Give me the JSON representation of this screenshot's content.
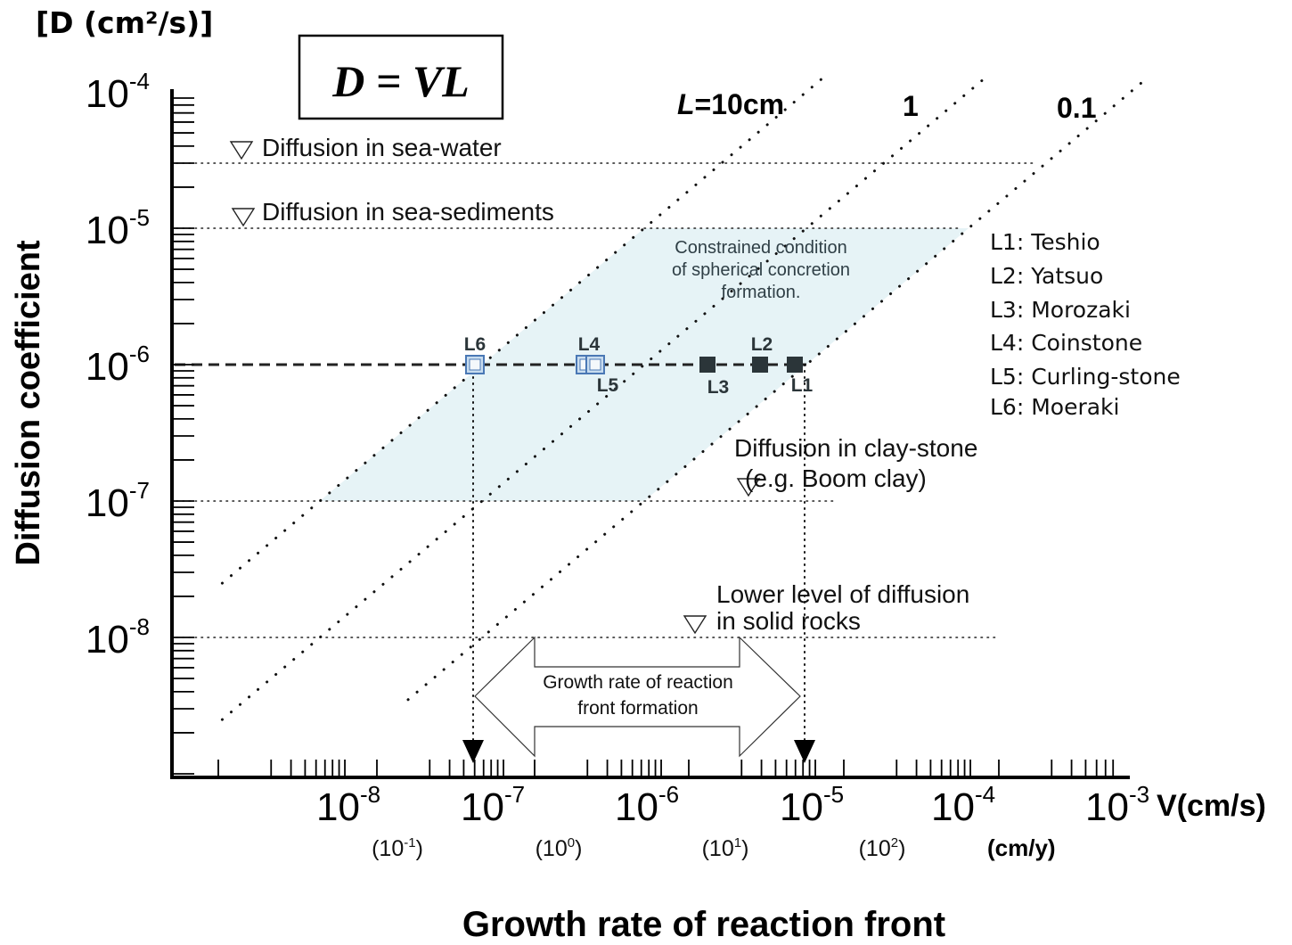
{
  "chart_data": {
    "type": "scatter",
    "title": "",
    "equation_box": "D = VL",
    "xlabel": "Growth rate of reaction front",
    "ylabel": "Diffusion coefficient",
    "y_unit_label": "[D (cm²/s)]",
    "x_unit_label": "V(cm/s)",
    "x_secondary_unit_label": "(cm/y)",
    "x_scale": "log",
    "y_scale": "log",
    "xlim": [
      1e-09,
      0.002
    ],
    "ylim": [
      3e-09,
      0.0001
    ],
    "x_ticks": [
      {
        "base": "10",
        "exp": "-8",
        "value": 1e-08
      },
      {
        "base": "10",
        "exp": "-7",
        "value": 1e-07
      },
      {
        "base": "10",
        "exp": "-6",
        "value": 1e-06
      },
      {
        "base": "10",
        "exp": "-5",
        "value": 1e-05
      },
      {
        "base": "10",
        "exp": "-4",
        "value": 0.0001
      },
      {
        "base": "10",
        "exp": "-3",
        "value": 0.001
      }
    ],
    "x_secondary_ticks": [
      {
        "base": "10",
        "exp": "-1",
        "text_open": "(",
        "text_close": ")"
      },
      {
        "base": "10",
        "exp": "0",
        "text_open": "(",
        "text_close": ")"
      },
      {
        "base": "10",
        "exp": "1",
        "text_open": "(",
        "text_close": ")"
      },
      {
        "base": "10",
        "exp": "2",
        "text_open": "(",
        "text_close": ")"
      }
    ],
    "y_ticks": [
      {
        "base": "10",
        "exp": "-4",
        "value": 0.0001
      },
      {
        "base": "10",
        "exp": "-5",
        "value": 1e-05
      },
      {
        "base": "10",
        "exp": "-6",
        "value": 1e-06
      },
      {
        "base": "10",
        "exp": "-7",
        "value": 1e-07
      },
      {
        "base": "10",
        "exp": "-8",
        "value": 1e-08
      }
    ],
    "iso_lines": [
      {
        "label": "L=10cm",
        "label_italic_part": "L",
        "label_rest": "=10cm",
        "L_cm": 10
      },
      {
        "label": "1",
        "L_cm": 1
      },
      {
        "label": "0.1",
        "L_cm": 0.1
      }
    ],
    "reference_levels": [
      {
        "name": "Diffusion in sea-water",
        "lines": [
          "Diffusion in sea-water"
        ],
        "D": 3e-05
      },
      {
        "name": "Diffusion in sea-sediments",
        "lines": [
          "Diffusion in sea-sediments"
        ],
        "D": 1e-05
      },
      {
        "name": "Diffusion in clay-stone (e.g. Boom clay)",
        "lines": [
          "Diffusion in clay-stone",
          "(e.g. Boom clay)"
        ],
        "D": 1e-07
      },
      {
        "name": "Lower level of diffusion in solid rocks",
        "lines": [
          "Lower level of diffusion",
          "in solid rocks"
        ],
        "D": 1e-08
      }
    ],
    "constrained_region": {
      "label_lines": [
        "Constrained condition",
        "of spherical concretion",
        "formation."
      ],
      "D_range": [
        1e-07,
        1e-05
      ],
      "L_range_cm": [
        0.1,
        10
      ],
      "color": "#e6f3f6"
    },
    "reference_D": 1e-06,
    "points": [
      {
        "id": "L1",
        "name": "Teshio",
        "V": 1e-05,
        "D": 1e-06,
        "style": "filled"
      },
      {
        "id": "L2",
        "name": "Yatsuo",
        "V": 6e-06,
        "D": 1e-06,
        "style": "filled"
      },
      {
        "id": "L3",
        "name": "Morozaki",
        "V": 2.8e-06,
        "D": 1e-06,
        "style": "filled"
      },
      {
        "id": "L4",
        "name": "Coinstone",
        "V": 4.5e-07,
        "D": 1e-06,
        "style": "open"
      },
      {
        "id": "L5",
        "name": "Curling-stone",
        "V": 5.2e-07,
        "D": 1e-06,
        "style": "open"
      },
      {
        "id": "L6",
        "name": "Moeraki",
        "V": 9e-08,
        "D": 1e-06,
        "style": "open"
      }
    ],
    "legend": [
      "L1: Teshio",
      "L2: Yatsuo",
      "L3: Morozaki",
      "L4: Coinstone",
      "L5: Curling-stone",
      "L6: Moeraki"
    ],
    "legend_placement": "right",
    "range_arrow": {
      "label_lines": [
        "Growth rate of reaction",
        "front formation"
      ],
      "V_range": [
        1e-07,
        1e-05
      ]
    },
    "colors": {
      "filled_marker": "#2b3539",
      "open_marker": "#4a78b5",
      "open_marker_fill": "#c8dcef",
      "region_text": "#2f3f46",
      "axis": "#000000"
    }
  }
}
